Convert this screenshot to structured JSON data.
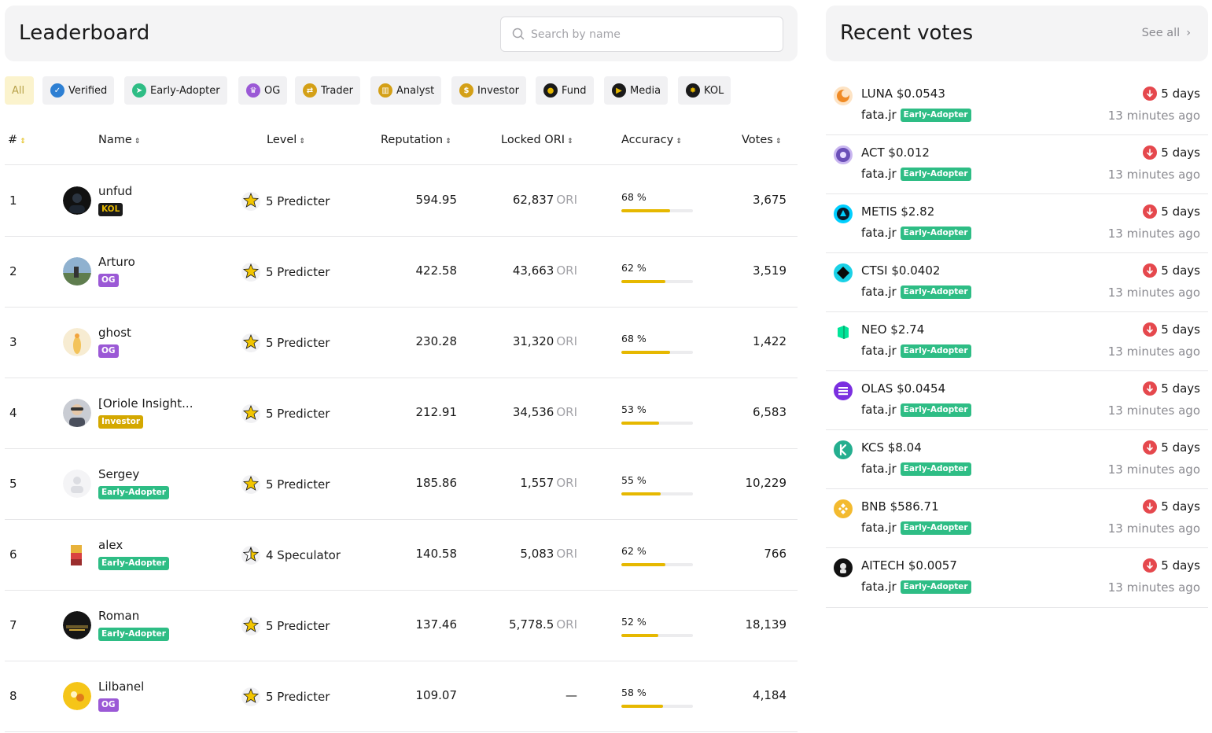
{
  "leaderboard": {
    "title": "Leaderboard",
    "search_placeholder": "Search by name",
    "filters": [
      {
        "label": "All",
        "icon": "all",
        "color": ""
      },
      {
        "label": "Verified",
        "icon": "verified-icon",
        "color": "#2d7fd3"
      },
      {
        "label": "Early-Adopter",
        "icon": "early-adopter-icon",
        "color": "#2ebd85"
      },
      {
        "label": "OG",
        "icon": "og-icon",
        "color": "#9b59d6"
      },
      {
        "label": "Trader",
        "icon": "trader-icon",
        "color": "#d4a017"
      },
      {
        "label": "Analyst",
        "icon": "analyst-icon",
        "color": "#d4a017"
      },
      {
        "label": "Investor",
        "icon": "investor-icon",
        "color": "#d4a017"
      },
      {
        "label": "Fund",
        "icon": "fund-icon",
        "color": "#1a1a1a"
      },
      {
        "label": "Media",
        "icon": "media-icon",
        "color": "#1a1a1a"
      },
      {
        "label": "KOL",
        "icon": "kol-icon",
        "color": "#1a1a1a"
      }
    ],
    "columns": {
      "rank": "#",
      "name": "Name",
      "level": "Level",
      "reputation": "Reputation",
      "locked": "Locked ORI",
      "accuracy": "Accuracy",
      "votes": "Votes"
    },
    "rows": [
      {
        "rank": "1",
        "name": "unfud",
        "badge": "KOL",
        "level": "5 Predicter",
        "reputation": "594.95",
        "locked": "62,837",
        "locked_unit": "ORI",
        "accuracy_label": "68 %",
        "accuracy": 0.68,
        "votes": "3,675"
      },
      {
        "rank": "2",
        "name": "Arturo",
        "badge": "OG",
        "level": "5 Predicter",
        "reputation": "422.58",
        "locked": "43,663",
        "locked_unit": "ORI",
        "accuracy_label": "62 %",
        "accuracy": 0.62,
        "votes": "3,519"
      },
      {
        "rank": "3",
        "name": "ghost",
        "badge": "OG",
        "level": "5 Predicter",
        "reputation": "230.28",
        "locked": "31,320",
        "locked_unit": "ORI",
        "accuracy_label": "68 %",
        "accuracy": 0.68,
        "votes": "1,422"
      },
      {
        "rank": "4",
        "name": "[Oriole Insight...",
        "badge": "Investor",
        "level": "5 Predicter",
        "reputation": "212.91",
        "locked": "34,536",
        "locked_unit": "ORI",
        "accuracy_label": "53 %",
        "accuracy": 0.53,
        "votes": "6,583"
      },
      {
        "rank": "5",
        "name": "Sergey",
        "badge": "Early-Adopter",
        "level": "5 Predicter",
        "reputation": "185.86",
        "locked": "1,557",
        "locked_unit": "ORI",
        "accuracy_label": "55 %",
        "accuracy": 0.55,
        "votes": "10,229"
      },
      {
        "rank": "6",
        "name": "alex",
        "badge": "Early-Adopter",
        "level": "4 Speculator",
        "reputation": "140.58",
        "locked": "5,083",
        "locked_unit": "ORI",
        "accuracy_label": "62 %",
        "accuracy": 0.62,
        "votes": "766"
      },
      {
        "rank": "7",
        "name": "Roman",
        "badge": "Early-Adopter",
        "level": "5 Predicter",
        "reputation": "137.46",
        "locked": "5,778.5",
        "locked_unit": "ORI",
        "accuracy_label": "52 %",
        "accuracy": 0.52,
        "votes": "18,139"
      },
      {
        "rank": "8",
        "name": "Lilbanel",
        "badge": "OG",
        "level": "5 Predicter",
        "reputation": "109.07",
        "locked": "—",
        "locked_unit": "",
        "accuracy_label": "58 %",
        "accuracy": 0.58,
        "votes": "4,184"
      }
    ]
  },
  "recent_votes": {
    "title": "Recent votes",
    "see_all": "See all",
    "items": [
      {
        "symbol": "LUNA",
        "price": "$0.0543",
        "voter": "fata.jr",
        "tag": "Early-Adopter",
        "duration": "5 days",
        "time": "13 minutes ago",
        "coin_color": "#f08a24",
        "direction": "down"
      },
      {
        "symbol": "ACT",
        "price": "$0.012",
        "voter": "fata.jr",
        "tag": "Early-Adopter",
        "duration": "5 days",
        "time": "13 minutes ago",
        "coin_color": "#8a6fd1",
        "direction": "down"
      },
      {
        "symbol": "METIS",
        "price": "$2.82",
        "voter": "fata.jr",
        "tag": "Early-Adopter",
        "duration": "5 days",
        "time": "13 minutes ago",
        "coin_color": "#00cfff",
        "direction": "down"
      },
      {
        "symbol": "CTSI",
        "price": "$0.0402",
        "voter": "fata.jr",
        "tag": "Early-Adopter",
        "duration": "5 days",
        "time": "13 minutes ago",
        "coin_color": "#1ad1e6",
        "direction": "down"
      },
      {
        "symbol": "NEO",
        "price": "$2.74",
        "voter": "fata.jr",
        "tag": "Early-Adopter",
        "duration": "5 days",
        "time": "13 minutes ago",
        "coin_color": "#00e599",
        "direction": "down"
      },
      {
        "symbol": "OLAS",
        "price": "$0.0454",
        "voter": "fata.jr",
        "tag": "Early-Adopter",
        "duration": "5 days",
        "time": "13 minutes ago",
        "coin_color": "#7b2fe0",
        "direction": "down"
      },
      {
        "symbol": "KCS",
        "price": "$8.04",
        "voter": "fata.jr",
        "tag": "Early-Adopter",
        "duration": "5 days",
        "time": "13 minutes ago",
        "coin_color": "#24ae8f",
        "direction": "down"
      },
      {
        "symbol": "BNB",
        "price": "$586.71",
        "voter": "fata.jr",
        "tag": "Early-Adopter",
        "duration": "5 days",
        "time": "13 minutes ago",
        "coin_color": "#f3ba2f",
        "direction": "down"
      },
      {
        "symbol": "AITECH",
        "price": "$0.0057",
        "voter": "fata.jr",
        "tag": "Early-Adopter",
        "duration": "5 days",
        "time": "13 minutes ago",
        "coin_color": "#111111",
        "direction": "down"
      }
    ]
  },
  "colors": {
    "accent": "#e6b800",
    "early_adopter": "#2ebd85",
    "og": "#9b59d6",
    "investor": "#d4a800",
    "kol": "#1a1a1a",
    "down": "#e5484d"
  }
}
